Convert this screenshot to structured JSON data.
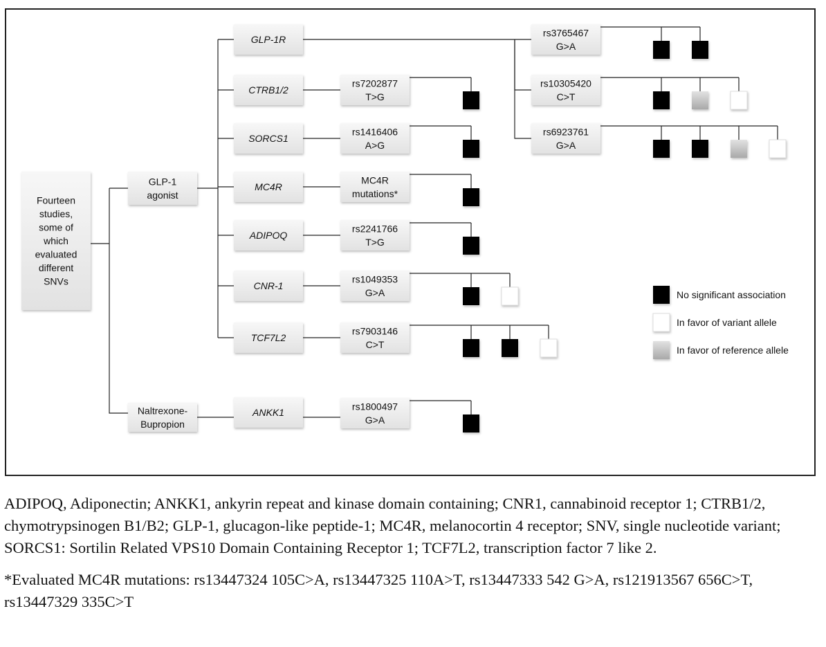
{
  "root": {
    "label": [
      "Fourteen",
      "studies,",
      "some of",
      "which",
      "evaluated",
      "different",
      "SNVs"
    ]
  },
  "drugs": [
    {
      "id": "glp1-agonist",
      "label": [
        "GLP-1",
        "agonist"
      ]
    },
    {
      "id": "naltrexone-bupropion",
      "label": [
        "Naltrexone-",
        "Bupropion"
      ]
    }
  ],
  "genes": [
    {
      "id": "glp1r",
      "label": "GLP-1R"
    },
    {
      "id": "ctrb12",
      "label": "CTRB1/2"
    },
    {
      "id": "sorcs1",
      "label": "SORCS1"
    },
    {
      "id": "mc4r",
      "label": "MC4R"
    },
    {
      "id": "adipoq",
      "label": "ADIPOQ"
    },
    {
      "id": "cnr1",
      "label": "CNR-1"
    },
    {
      "id": "tcf7l2",
      "label": "TCF7L2"
    },
    {
      "id": "ankk1",
      "label": "ANKK1"
    }
  ],
  "variants": [
    {
      "id": "rs3765467",
      "gene": "glp1r",
      "label": [
        "rs3765467",
        "G>A"
      ],
      "results": [
        "none",
        "none"
      ]
    },
    {
      "id": "rs10305420",
      "gene": "glp1r",
      "label": [
        "rs10305420",
        "C>T"
      ],
      "results": [
        "none",
        "reference",
        "variant"
      ]
    },
    {
      "id": "rs6923761",
      "gene": "glp1r",
      "label": [
        "rs6923761",
        "G>A"
      ],
      "results": [
        "none",
        "none",
        "reference",
        "variant"
      ]
    },
    {
      "id": "rs7202877",
      "gene": "ctrb12",
      "label": [
        "rs7202877",
        "T>G"
      ],
      "results": [
        "none"
      ]
    },
    {
      "id": "rs1416406",
      "gene": "sorcs1",
      "label": [
        "rs1416406",
        "A>G"
      ],
      "results": [
        "none"
      ]
    },
    {
      "id": "mc4r-mutations",
      "gene": "mc4r",
      "label": [
        "MC4R",
        "mutations*"
      ],
      "results": [
        "none"
      ]
    },
    {
      "id": "rs2241766",
      "gene": "adipoq",
      "label": [
        "rs2241766",
        "T>G"
      ],
      "results": [
        "none"
      ]
    },
    {
      "id": "rs1049353",
      "gene": "cnr1",
      "label": [
        "rs1049353",
        "G>A"
      ],
      "results": [
        "none",
        "variant"
      ]
    },
    {
      "id": "rs7903146",
      "gene": "tcf7l2",
      "label": [
        "rs7903146",
        "C>T"
      ],
      "results": [
        "none",
        "none",
        "variant"
      ]
    },
    {
      "id": "rs1800497",
      "gene": "ankk1",
      "label": [
        "rs1800497",
        "G>A"
      ],
      "results": [
        "none"
      ]
    }
  ],
  "legend": [
    {
      "key": "none",
      "label": "No significant association",
      "color": "#000000"
    },
    {
      "key": "variant",
      "label": "In favor of variant allele",
      "color": "#ffffff"
    },
    {
      "key": "reference",
      "label": "In favor of reference allele",
      "color": "#c4c4c4"
    }
  ],
  "caption": {
    "abbreviations": "ADIPOQ, Adiponectin; ANKK1, ankyrin repeat and kinase domain containing; CNR1, cannabinoid receptor 1; CTRB1/2, chymotrypsinogen B1/B2; GLP-1, glucagon-like peptide-1; MC4R, melanocortin 4 receptor; SNV, single nucleotide variant; SORCS1: Sortilin Related VPS10 Domain Containing Receptor 1; TCF7L2, transcription factor 7 like 2.",
    "footnote": "*Evaluated MC4R mutations: rs13447324 105C>A, rs13447325 110A>T, rs13447333 542 G>A, rs121913567 656C>T, rs13447329 335C>T"
  }
}
